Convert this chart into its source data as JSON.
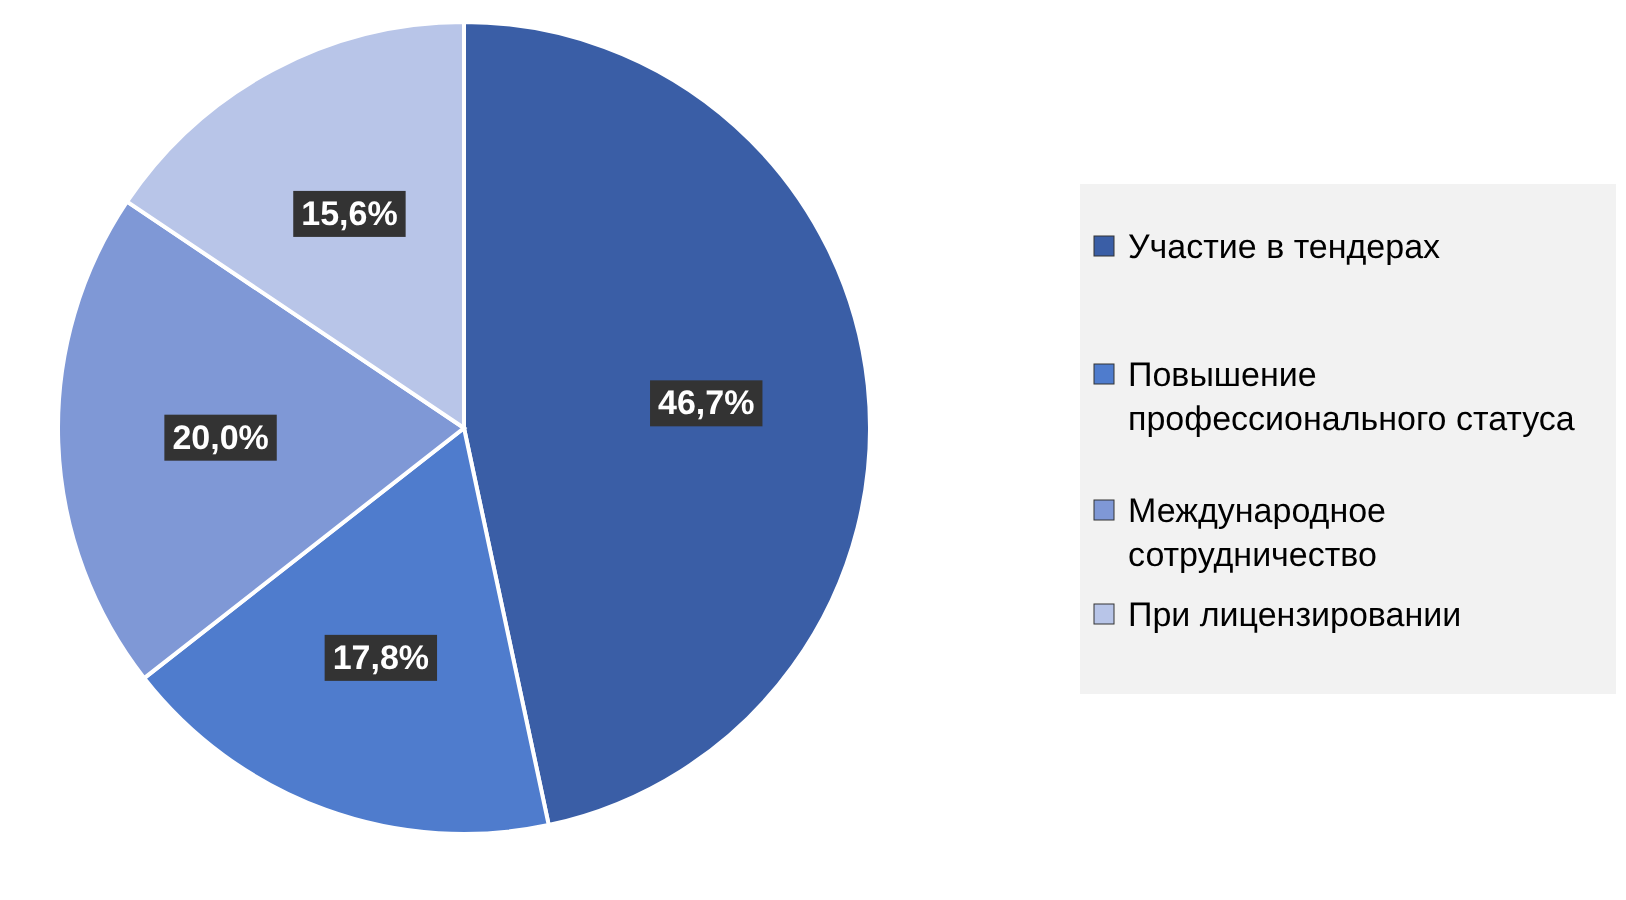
{
  "chart_data": {
    "type": "pie",
    "categories": [
      "Участие в тендерах",
      "Повышение профессионального статуса",
      "Международное сотрудничество",
      "При лицензировании"
    ],
    "values": [
      46.7,
      17.8,
      20.0,
      15.6
    ],
    "value_labels": [
      "46,7%",
      "17,8%",
      "20,0%",
      "15,6%"
    ],
    "colors": [
      "#3a5ea6",
      "#4f7ccd",
      "#7f98d6",
      "#b8c5e8"
    ],
    "legend": "right"
  }
}
